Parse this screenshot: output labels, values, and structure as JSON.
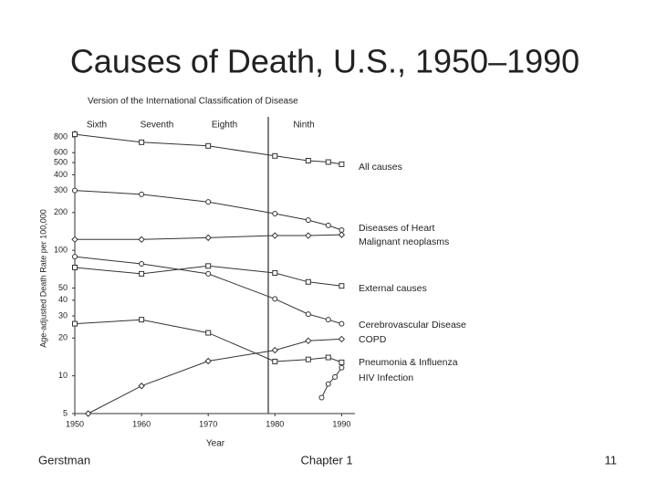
{
  "slide_title": "Causes of Death, U.S., 1950–1990",
  "footer": {
    "left": "Gerstman",
    "center": "Chapter 1",
    "right": "11"
  },
  "chart_data": {
    "type": "line",
    "header": "Version of the International Classification of Disease",
    "versions": [
      "Sixth",
      "Seventh",
      "Eighth",
      "Ninth"
    ],
    "x_label": "Year",
    "y_label": "Age-adjusted Death Rate per 100,000",
    "log_y": true,
    "xlim": [
      1950,
      1992
    ],
    "xticks": [
      1950,
      1960,
      1970,
      1980,
      1990
    ],
    "ylim": [
      5,
      900
    ],
    "yticks": [
      5,
      10,
      20,
      30,
      40,
      50,
      100,
      200,
      300,
      400,
      500,
      600,
      800
    ],
    "vlines": [
      1979
    ],
    "series": [
      {
        "name": "All causes",
        "color": "#333333",
        "x": [
          1950,
          1960,
          1970,
          1980,
          1985,
          1988,
          1990
        ],
        "values": [
          840,
          726,
          679,
          565,
          518,
          505,
          485
        ]
      },
      {
        "name": "Diseases of Heart",
        "color": "#333333",
        "x": [
          1950,
          1960,
          1970,
          1980,
          1985,
          1988,
          1990
        ],
        "values": [
          300,
          279,
          243,
          196,
          174,
          158,
          145
        ]
      },
      {
        "name": "Malignant neoplasms",
        "color": "#333333",
        "x": [
          1950,
          1960,
          1970,
          1980,
          1985,
          1990
        ],
        "values": [
          122,
          122,
          126,
          131,
          131,
          133
        ]
      },
      {
        "name": "External causes",
        "color": "#333333",
        "x": [
          1950,
          1960,
          1970,
          1980,
          1985,
          1990
        ],
        "values": [
          73,
          65,
          75,
          66,
          56,
          52
        ]
      },
      {
        "name": "Cerebrovascular Disease",
        "color": "#333333",
        "x": [
          1950,
          1960,
          1970,
          1980,
          1985,
          1988,
          1990
        ],
        "values": [
          89,
          78,
          65,
          41,
          31,
          28,
          26
        ]
      },
      {
        "name": "COPD",
        "color": "#333333",
        "x": [
          1952,
          1960,
          1970,
          1980,
          1985,
          1990
        ],
        "values": [
          5,
          8.3,
          13.1,
          16,
          19,
          19.6
        ]
      },
      {
        "name": "Pneumonia & Influenza",
        "color": "#333333",
        "x": [
          1950,
          1960,
          1970,
          1980,
          1985,
          1988,
          1990
        ],
        "values": [
          26,
          28,
          22,
          13,
          13.5,
          14,
          12.8
        ]
      },
      {
        "name": "HIV Infection",
        "color": "#333333",
        "x": [
          1987,
          1988,
          1989,
          1990
        ],
        "values": [
          6.7,
          8.6,
          9.8,
          11.6
        ]
      }
    ]
  }
}
